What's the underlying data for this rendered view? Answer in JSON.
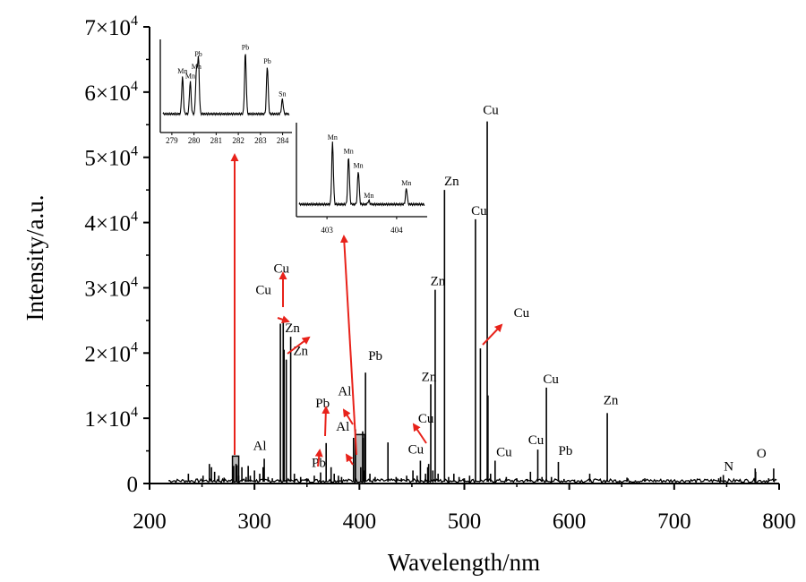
{
  "chart_data": {
    "type": "line",
    "xlabel": "Wavelength/nm",
    "ylabel": "Intensity/a.u.",
    "xlim": [
      200,
      800
    ],
    "ylim": [
      0,
      70000
    ],
    "x_ticks": [
      "200",
      "300",
      "400",
      "500",
      "600",
      "700",
      "800"
    ],
    "y_ticks": [
      {
        "value": 0,
        "mant": "0",
        "exp": ""
      },
      {
        "value": 10000,
        "mant": "1×10",
        "exp": "4"
      },
      {
        "value": 20000,
        "mant": "2×10",
        "exp": "4"
      },
      {
        "value": 30000,
        "mant": "3×10",
        "exp": "4"
      },
      {
        "value": 40000,
        "mant": "4×10",
        "exp": "4"
      },
      {
        "value": 50000,
        "mant": "5×10",
        "exp": "4"
      },
      {
        "value": 60000,
        "mant": "6×10",
        "exp": "4"
      },
      {
        "value": 70000,
        "mant": "7×10",
        "exp": "4"
      }
    ],
    "peaks": [
      {
        "x": 237,
        "y": 1500
      },
      {
        "x": 251,
        "y": 1200
      },
      {
        "x": 257,
        "y": 3000
      },
      {
        "x": 259,
        "y": 2500
      },
      {
        "x": 262,
        "y": 1800
      },
      {
        "x": 266,
        "y": 1200
      },
      {
        "x": 271,
        "y": 900
      },
      {
        "x": 279.5,
        "y": 2200
      },
      {
        "x": 280.1,
        "y": 2700
      },
      {
        "x": 282.4,
        "y": 3000
      },
      {
        "x": 283.3,
        "y": 2800
      },
      {
        "x": 285,
        "y": 1200
      },
      {
        "x": 288,
        "y": 2500
      },
      {
        "x": 292,
        "y": 1000
      },
      {
        "x": 294,
        "y": 2700
      },
      {
        "x": 296,
        "y": 1200
      },
      {
        "x": 300,
        "y": 2000
      },
      {
        "x": 305,
        "y": 1500
      },
      {
        "x": 308.2,
        "y": 2500
      },
      {
        "x": 309.3,
        "y": 3800
      },
      {
        "x": 313,
        "y": 1000
      },
      {
        "x": 317,
        "y": 800
      },
      {
        "x": 324.7,
        "y": 24500
      },
      {
        "x": 327.4,
        "y": 24800
      },
      {
        "x": 328.2,
        "y": 20500
      },
      {
        "x": 330.3,
        "y": 19000
      },
      {
        "x": 334.5,
        "y": 22500
      },
      {
        "x": 338,
        "y": 1500
      },
      {
        "x": 344,
        "y": 1000
      },
      {
        "x": 350,
        "y": 800
      },
      {
        "x": 357,
        "y": 1200
      },
      {
        "x": 363,
        "y": 1700
      },
      {
        "x": 368.3,
        "y": 6200
      },
      {
        "x": 373,
        "y": 2500
      },
      {
        "x": 376,
        "y": 1500
      },
      {
        "x": 380,
        "y": 1200
      },
      {
        "x": 383,
        "y": 1000
      },
      {
        "x": 394.4,
        "y": 7000
      },
      {
        "x": 396.2,
        "y": 8300
      },
      {
        "x": 401.3,
        "y": 2500
      },
      {
        "x": 403.1,
        "y": 8000
      },
      {
        "x": 403.4,
        "y": 7000
      },
      {
        "x": 404.1,
        "y": 2000
      },
      {
        "x": 405.8,
        "y": 17000
      },
      {
        "x": 410,
        "y": 1500
      },
      {
        "x": 415,
        "y": 1000
      },
      {
        "x": 427.2,
        "y": 6300
      },
      {
        "x": 435,
        "y": 1000
      },
      {
        "x": 440,
        "y": 800
      },
      {
        "x": 445,
        "y": 1200
      },
      {
        "x": 451,
        "y": 2000
      },
      {
        "x": 455,
        "y": 1200
      },
      {
        "x": 458.1,
        "y": 3500
      },
      {
        "x": 463,
        "y": 1500
      },
      {
        "x": 465.1,
        "y": 2500
      },
      {
        "x": 466,
        "y": 3000
      },
      {
        "x": 468.0,
        "y": 15200
      },
      {
        "x": 470,
        "y": 2000
      },
      {
        "x": 472.2,
        "y": 29700
      },
      {
        "x": 475,
        "y": 1500
      },
      {
        "x": 481.1,
        "y": 45000
      },
      {
        "x": 485,
        "y": 1000
      },
      {
        "x": 490,
        "y": 1500
      },
      {
        "x": 495,
        "y": 1000
      },
      {
        "x": 500,
        "y": 800
      },
      {
        "x": 505,
        "y": 1200
      },
      {
        "x": 510.6,
        "y": 40500
      },
      {
        "x": 515.3,
        "y": 20700
      },
      {
        "x": 521.8,
        "y": 55500
      },
      {
        "x": 522.5,
        "y": 13500
      },
      {
        "x": 525,
        "y": 1500
      },
      {
        "x": 529.3,
        "y": 3500
      },
      {
        "x": 540,
        "y": 1000
      },
      {
        "x": 550,
        "y": 800
      },
      {
        "x": 560,
        "y": 700
      },
      {
        "x": 563,
        "y": 1800
      },
      {
        "x": 570.0,
        "y": 5200
      },
      {
        "x": 574,
        "y": 1000
      },
      {
        "x": 578.2,
        "y": 14700
      },
      {
        "x": 583,
        "y": 1000
      },
      {
        "x": 589.6,
        "y": 3300
      },
      {
        "x": 595,
        "y": 700
      },
      {
        "x": 605,
        "y": 600
      },
      {
        "x": 619.5,
        "y": 1500
      },
      {
        "x": 636.2,
        "y": 10800
      },
      {
        "x": 648,
        "y": 500
      },
      {
        "x": 655,
        "y": 900
      },
      {
        "x": 663,
        "y": 500
      },
      {
        "x": 672,
        "y": 800
      },
      {
        "x": 690,
        "y": 500
      },
      {
        "x": 715,
        "y": 400
      },
      {
        "x": 742.4,
        "y": 800
      },
      {
        "x": 744.2,
        "y": 1000
      },
      {
        "x": 746.8,
        "y": 1300
      },
      {
        "x": 762,
        "y": 500
      },
      {
        "x": 777.2,
        "y": 2300
      },
      {
        "x": 777.6,
        "y": 1800
      },
      {
        "x": 790,
        "y": 800
      },
      {
        "x": 794.8,
        "y": 2300
      }
    ],
    "annotations": [
      {
        "label": "Al",
        "x": 309.3,
        "y": 3800
      },
      {
        "label": "Cu",
        "x": 324.7,
        "y": 24500
      },
      {
        "label": "Cu",
        "x": 327.4,
        "y": 24800
      },
      {
        "label": "Zn",
        "x": 330.3,
        "y": 19000
      },
      {
        "label": "Zn",
        "x": 334.5,
        "y": 22500
      },
      {
        "label": "Pb",
        "x": 363,
        "y": 1700
      },
      {
        "label": "Pb",
        "x": 368.3,
        "y": 6200
      },
      {
        "label": "Al",
        "x": 394.4,
        "y": 7000
      },
      {
        "label": "Al",
        "x": 396.2,
        "y": 8300
      },
      {
        "label": "Pb",
        "x": 405.8,
        "y": 17000
      },
      {
        "label": "Cu",
        "x": 458.1,
        "y": 3500
      },
      {
        "label": "Cu",
        "x": 465.1,
        "y": 2500
      },
      {
        "label": "Zn",
        "x": 468.0,
        "y": 15200
      },
      {
        "label": "Zn",
        "x": 472.2,
        "y": 29700
      },
      {
        "label": "Zn",
        "x": 481.1,
        "y": 45000
      },
      {
        "label": "Cu",
        "x": 510.6,
        "y": 40500
      },
      {
        "label": "Cu",
        "x": 515.3,
        "y": 20700
      },
      {
        "label": "Cu",
        "x": 521.8,
        "y": 55500
      },
      {
        "label": "Cu",
        "x": 529.3,
        "y": 3500
      },
      {
        "label": "Cu",
        "x": 570.0,
        "y": 5200
      },
      {
        "label": "Cu",
        "x": 578.2,
        "y": 14700
      },
      {
        "label": "Pb",
        "x": 589.6,
        "y": 3300
      },
      {
        "label": "Zn",
        "x": 636.2,
        "y": 10800
      },
      {
        "label": "N",
        "x": 746.8,
        "y": 1300
      },
      {
        "label": "O",
        "x": 777.2,
        "y": 2300
      }
    ],
    "highlight_regions": [
      {
        "x_from": 279,
        "x_to": 285,
        "y_top": 4200
      },
      {
        "x_from": 396,
        "x_to": 405,
        "y_top": 7500
      }
    ],
    "insets": [
      {
        "xlim": [
          278.6,
          284.3
        ],
        "x_ticks": [
          "279",
          "280",
          "281",
          "282",
          "283",
          "284"
        ],
        "peaks": [
          {
            "x": 279.48,
            "y": 0.55,
            "label": "Mn"
          },
          {
            "x": 279.83,
            "y": 0.48,
            "label": "Mn"
          },
          {
            "x": 280.11,
            "y": 0.62,
            "label": "Mn"
          },
          {
            "x": 280.2,
            "y": 0.8,
            "label": "Pb"
          },
          {
            "x": 282.32,
            "y": 0.9,
            "label": "Pb"
          },
          {
            "x": 283.31,
            "y": 0.7,
            "label": "Pb"
          },
          {
            "x": 283.99,
            "y": 0.22,
            "label": "Sn"
          }
        ]
      },
      {
        "xlim": [
          402.6,
          404.4
        ],
        "x_ticks": [
          "403",
          "404"
        ],
        "peaks": [
          {
            "x": 403.08,
            "y": 0.85,
            "label": "Mn"
          },
          {
            "x": 403.31,
            "y": 0.66,
            "label": "Mn"
          },
          {
            "x": 403.45,
            "y": 0.46,
            "label": "Mn"
          },
          {
            "x": 403.6,
            "y": 0.05,
            "label": "Mn"
          },
          {
            "x": 404.14,
            "y": 0.22,
            "label": "Mn"
          }
        ]
      }
    ]
  }
}
